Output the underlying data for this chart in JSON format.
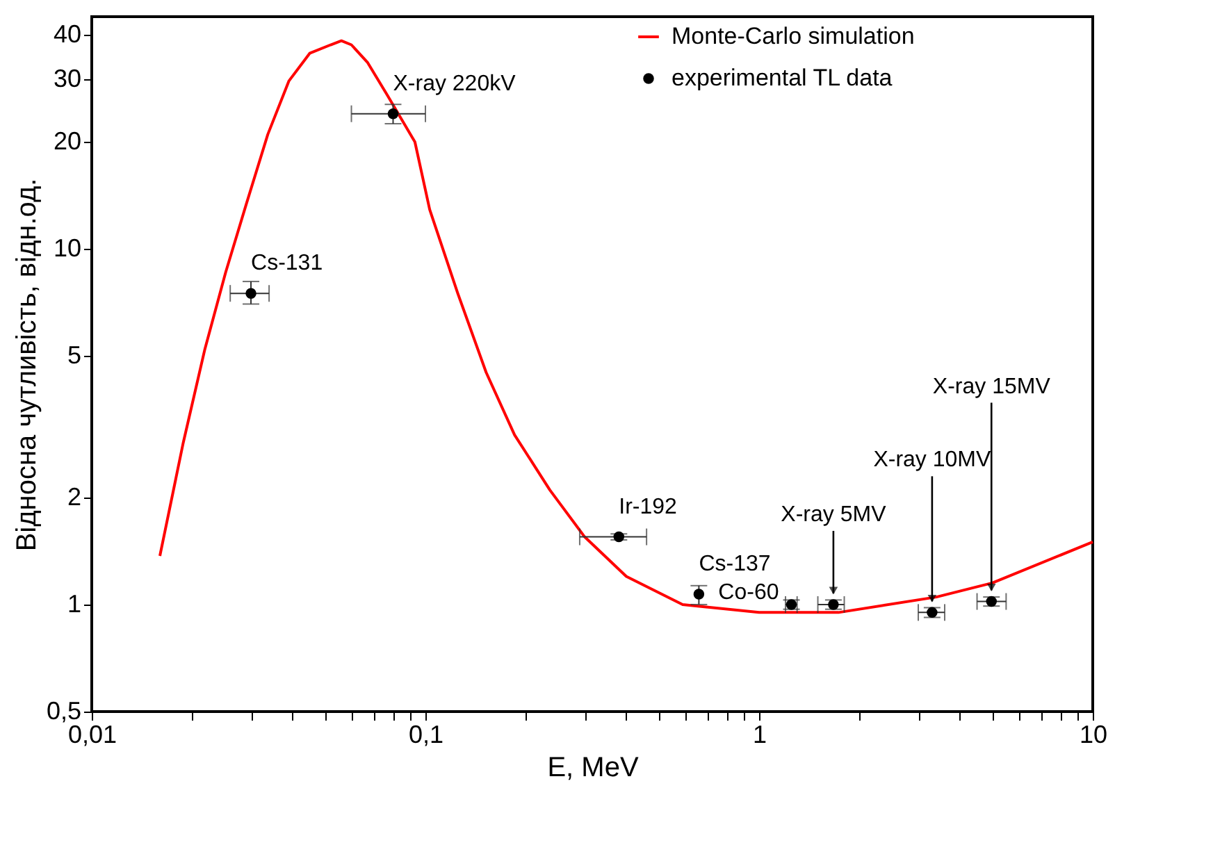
{
  "chart_data": {
    "type": "line",
    "xlabel": "E, MeV",
    "ylabel": "Відносна чутливість, відн.од.",
    "log": "xy",
    "grid": false,
    "legend": "top right",
    "xlim": [
      0.01,
      10
    ],
    "ylim": [
      0.5,
      45
    ],
    "xticks": [
      {
        "value": 0.01,
        "label": "0,01"
      },
      {
        "value": 0.02,
        "label": null
      },
      {
        "value": 0.03,
        "label": null
      },
      {
        "value": 0.04,
        "label": null
      },
      {
        "value": 0.05,
        "label": null
      },
      {
        "value": 0.06,
        "label": null
      },
      {
        "value": 0.07,
        "label": null
      },
      {
        "value": 0.08,
        "label": null
      },
      {
        "value": 0.09,
        "label": null
      },
      {
        "value": 0.1,
        "label": "0,1"
      },
      {
        "value": 0.2,
        "label": null
      },
      {
        "value": 0.3,
        "label": null
      },
      {
        "value": 0.4,
        "label": null
      },
      {
        "value": 0.5,
        "label": null
      },
      {
        "value": 0.6,
        "label": null
      },
      {
        "value": 0.7,
        "label": null
      },
      {
        "value": 0.8,
        "label": null
      },
      {
        "value": 0.9,
        "label": null
      },
      1,
      {
        "value": 2,
        "label": null
      },
      {
        "value": 3,
        "label": null
      },
      {
        "value": 4,
        "label": null
      },
      {
        "value": 5,
        "label": null
      },
      {
        "value": 6,
        "label": null
      },
      {
        "value": 7,
        "label": null
      },
      {
        "value": 8,
        "label": null
      },
      {
        "value": 9,
        "label": null
      },
      10
    ],
    "yticks": [
      {
        "value": 0.5,
        "label": "0,5"
      },
      1,
      2,
      5,
      10,
      20,
      30,
      40
    ],
    "series": [
      {
        "name": "Monte-Carlo simulation",
        "color": "#ff0000",
        "line_style": "solid",
        "marker": "none",
        "x": [
          0.016,
          0.0188,
          0.0218,
          0.0252,
          0.029,
          0.0337,
          0.039,
          0.045,
          0.052,
          0.056,
          0.06,
          0.067,
          0.077,
          0.093,
          0.103,
          0.125,
          0.152,
          0.185,
          0.236,
          0.3,
          0.4,
          0.59,
          1.0,
          1.73,
          3.4,
          5.0,
          10
        ],
        "values": [
          1.37,
          2.85,
          5.2,
          8.6,
          13.3,
          21,
          29.7,
          35.5,
          37.5,
          38.5,
          37.5,
          33.5,
          27,
          20,
          12.9,
          7.5,
          4.5,
          3.0,
          2.1,
          1.55,
          1.2,
          1.0,
          0.95,
          0.95,
          1.05,
          1.15,
          1.5
        ]
      },
      {
        "name": "experimental TL data",
        "type": "scatter",
        "color": "#000000",
        "marker": "circle",
        "x": [
          0.03,
          0.08,
          0.38,
          0.66,
          1.25,
          1.67,
          3.3,
          4.97
        ],
        "values": [
          7.5,
          24,
          1.55,
          1.07,
          1.0,
          1.0,
          0.95,
          1.02
        ],
        "errors": [
          [
            7.0,
            8.1
          ],
          [
            22.5,
            25.5
          ],
          [
            1.52,
            1.58
          ],
          [
            1.0,
            1.13
          ],
          [
            0.97,
            1.03
          ],
          [
            0.97,
            1.03
          ],
          [
            0.92,
            0.98
          ],
          [
            0.99,
            1.05
          ]
        ],
        "xerrors": [
          [
            0.026,
            0.034
          ],
          [
            0.06,
            0.1
          ],
          [
            0.29,
            0.46
          ],
          null,
          [
            1.2,
            1.3
          ],
          [
            1.5,
            1.8
          ],
          [
            3.0,
            3.6
          ],
          [
            4.5,
            5.5
          ]
        ]
      }
    ],
    "annotations": [
      {
        "text": "Cs-131",
        "x": 0.03,
        "y": 7.5
      },
      {
        "text": "X-ray 220kV",
        "x": 0.08,
        "y": 24
      },
      {
        "text": "Ir-192",
        "x": 0.38,
        "y": 1.55
      },
      {
        "text": "Cs-137",
        "x": 0.66,
        "y": 1.07
      },
      {
        "text": "Co-60",
        "x": 1.25,
        "y": 1.0
      },
      {
        "text": "X-ray 5MV",
        "x": 1.67,
        "y": 1.0
      },
      {
        "text": "X-ray 10MV",
        "x": 3.3,
        "y": 0.95
      },
      {
        "text": "X-ray 15MV",
        "x": 4.97,
        "y": 1.02
      }
    ]
  }
}
